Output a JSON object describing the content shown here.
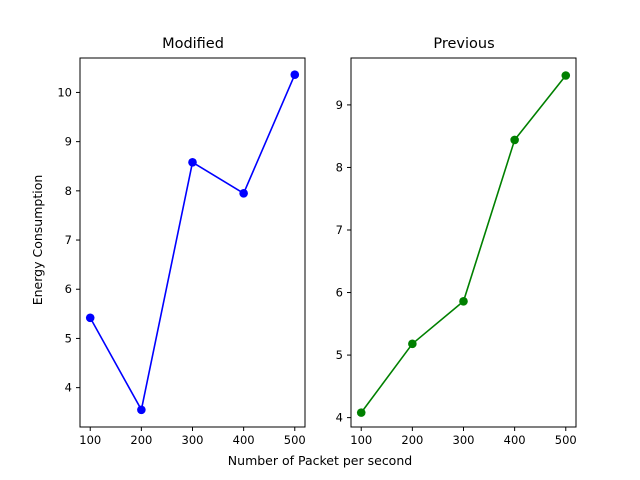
{
  "figure": {
    "xlabel": "Number of Packet per second",
    "ylabel": "Energy Consumption"
  },
  "chart_data": [
    {
      "type": "line",
      "title": "Modified",
      "xlabel": "",
      "ylabel": "Energy Consumption",
      "x": [
        100,
        200,
        300,
        400,
        500
      ],
      "series": [
        {
          "values": [
            5.42,
            3.55,
            8.58,
            7.95,
            10.36
          ],
          "color": "#0000ff"
        }
      ],
      "xticks": [
        100,
        200,
        300,
        400,
        500
      ],
      "yticks": [
        4,
        5,
        6,
        7,
        8,
        9,
        10
      ],
      "xlim": [
        80,
        520
      ],
      "ylim": [
        3.2,
        10.7
      ],
      "marker": "circle",
      "grid": false,
      "legend": "none"
    },
    {
      "type": "line",
      "title": "Previous",
      "xlabel": "",
      "ylabel": "",
      "x": [
        100,
        200,
        300,
        400,
        500
      ],
      "series": [
        {
          "values": [
            4.08,
            5.18,
            5.86,
            8.44,
            9.47
          ],
          "color": "#008000"
        }
      ],
      "xticks": [
        100,
        200,
        300,
        400,
        500
      ],
      "yticks": [
        4,
        5,
        6,
        7,
        8,
        9
      ],
      "xlim": [
        80,
        520
      ],
      "ylim": [
        3.85,
        9.75
      ],
      "marker": "circle",
      "grid": false,
      "legend": "none"
    }
  ]
}
